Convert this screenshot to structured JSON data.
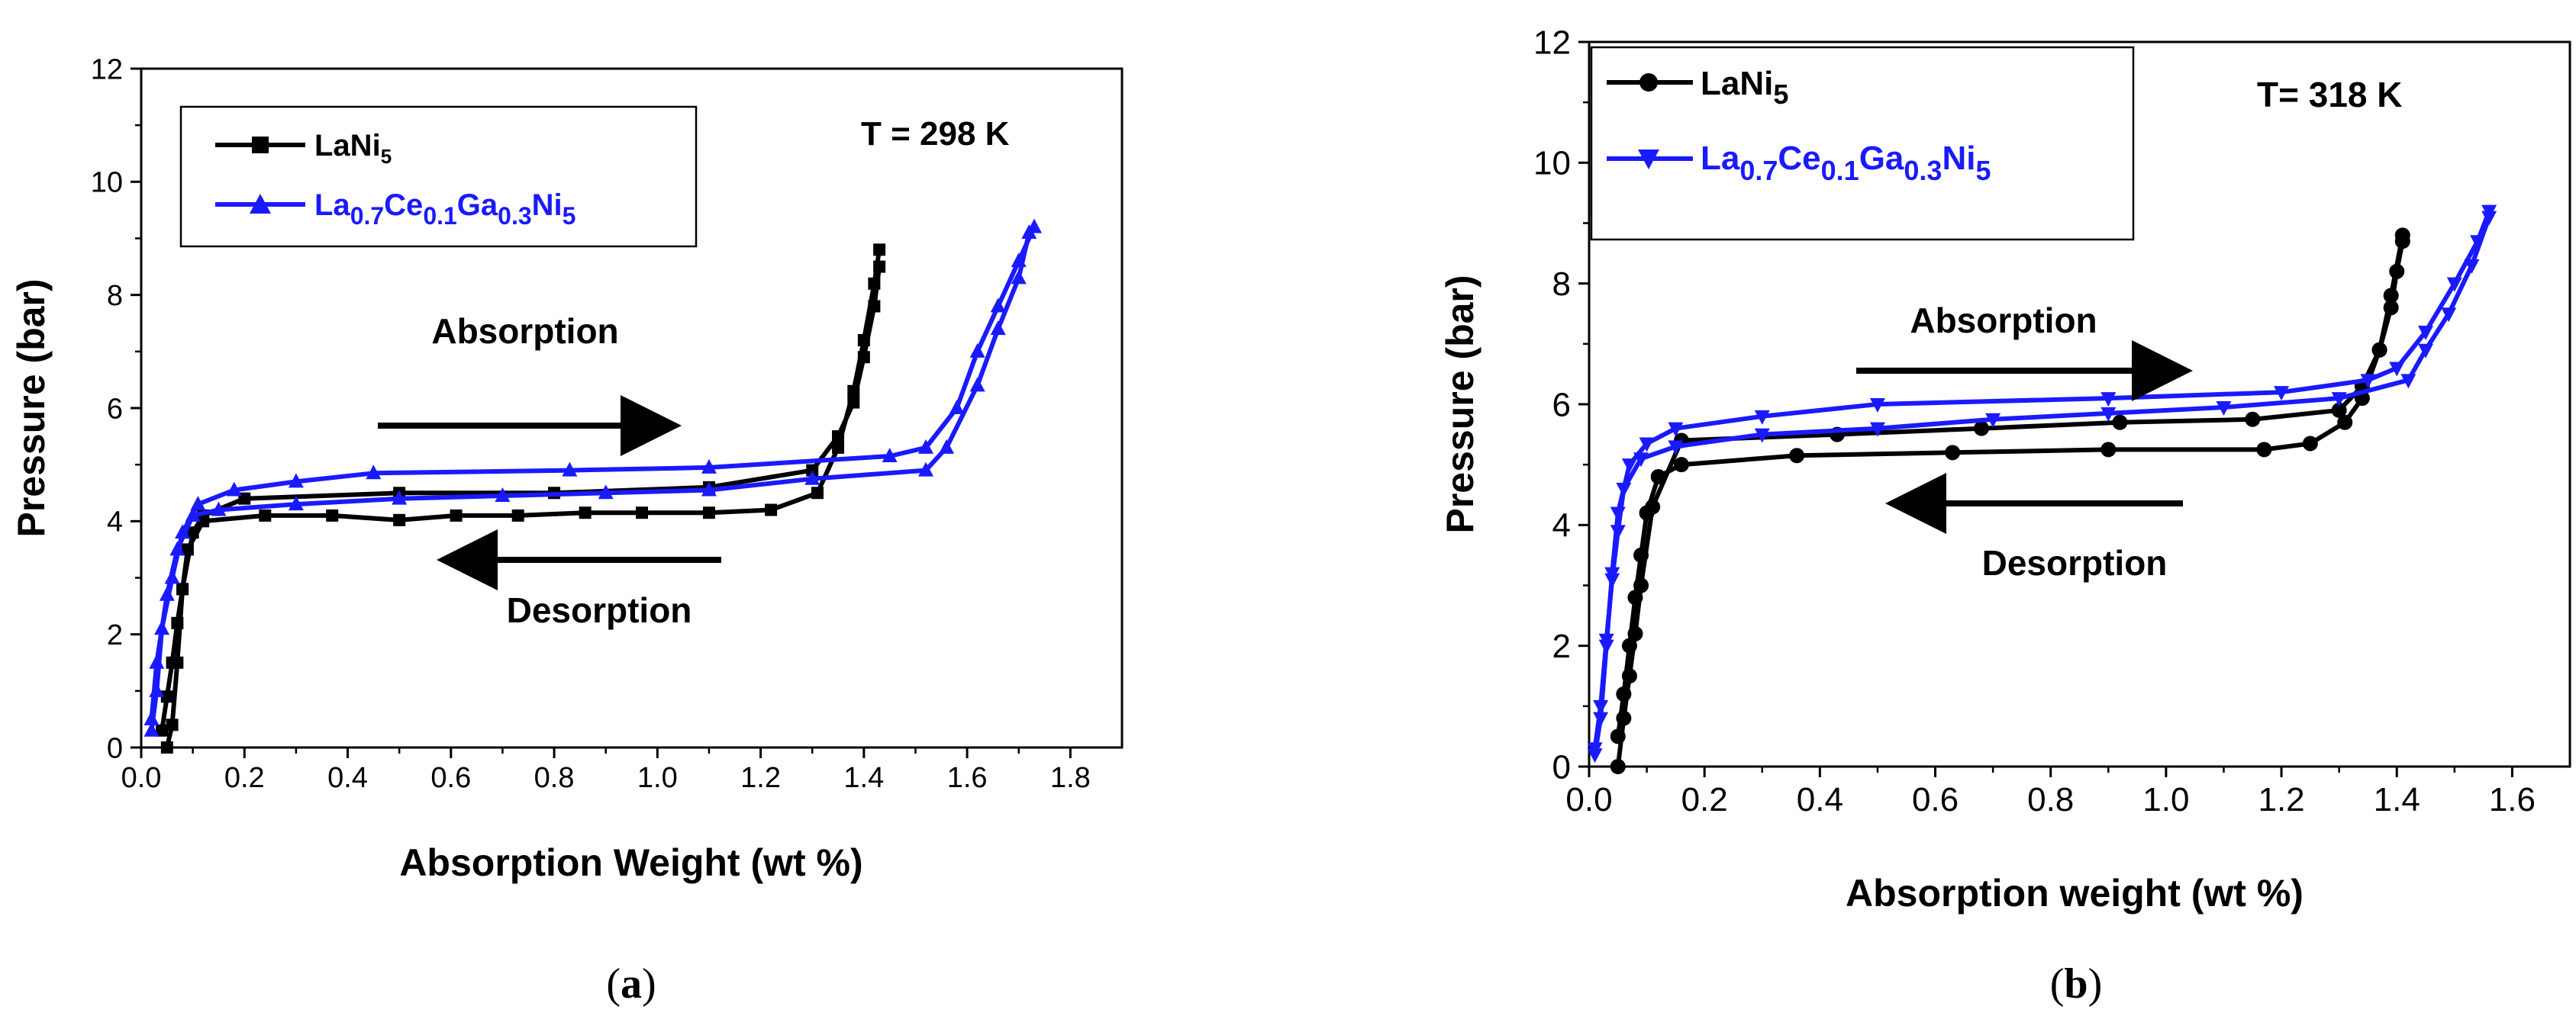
{
  "chart_data": [
    {
      "type": "line",
      "panel": "(a)",
      "caption_open": "(",
      "caption_letter": "a",
      "caption_close": ")",
      "xlabel": "Absorption Weight (wt %)",
      "ylabel": "Pressure (bar)",
      "xlim": [
        0.0,
        1.9
      ],
      "ylim": [
        0,
        12
      ],
      "xticks": [
        "0.0",
        "0.2",
        "0.4",
        "0.6",
        "0.8",
        "1.0",
        "1.2",
        "1.4",
        "1.6",
        "1.8"
      ],
      "yticks": [
        "0",
        "2",
        "4",
        "6",
        "8",
        "10",
        "12"
      ],
      "annotations": {
        "temperature": "T = 298 K",
        "absorption": "Absorption",
        "desorption": "Desorption"
      },
      "legend": {
        "series1": {
          "base": "LaNi",
          "sub": "5"
        },
        "series2": {
          "parts": [
            [
              "La",
              "0.7"
            ],
            [
              "Ce",
              "0.1"
            ],
            [
              "Ga",
              "0.3"
            ],
            [
              "Ni",
              "5"
            ]
          ]
        }
      },
      "series": [
        {
          "name": "LaNi5",
          "color": "#000000",
          "marker": "square",
          "absorption": [
            [
              0.05,
              0
            ],
            [
              0.06,
              0.4
            ],
            [
              0.07,
              1.5
            ],
            [
              0.08,
              2.8
            ],
            [
              0.1,
              3.8
            ],
            [
              0.12,
              4.1
            ],
            [
              0.2,
              4.4
            ],
            [
              0.5,
              4.5
            ],
            [
              0.8,
              4.5
            ],
            [
              1.1,
              4.6
            ],
            [
              1.3,
              4.9
            ],
            [
              1.35,
              5.5
            ],
            [
              1.38,
              6.1
            ],
            [
              1.4,
              6.9
            ],
            [
              1.42,
              7.8
            ],
            [
              1.43,
              8.5
            ]
          ],
          "desorption": [
            [
              1.43,
              8.8
            ],
            [
              1.42,
              8.2
            ],
            [
              1.4,
              7.2
            ],
            [
              1.38,
              6.3
            ],
            [
              1.35,
              5.3
            ],
            [
              1.31,
              4.5
            ],
            [
              1.22,
              4.2
            ],
            [
              1.1,
              4.15
            ],
            [
              0.97,
              4.15
            ],
            [
              0.86,
              4.15
            ],
            [
              0.73,
              4.1
            ],
            [
              0.61,
              4.1
            ],
            [
              0.5,
              4.02
            ],
            [
              0.37,
              4.1
            ],
            [
              0.24,
              4.1
            ],
            [
              0.12,
              4.0
            ],
            [
              0.09,
              3.5
            ],
            [
              0.08,
              2.8
            ],
            [
              0.07,
              2.2
            ],
            [
              0.06,
              1.5
            ],
            [
              0.05,
              0.9
            ],
            [
              0.04,
              0.3
            ]
          ]
        },
        {
          "name": "La0.7Ce0.1Ga0.3Ni5",
          "color": "#1a1aff",
          "marker": "triangle",
          "absorption": [
            [
              0.02,
              0.3
            ],
            [
              0.03,
              1.0
            ],
            [
              0.04,
              2.1
            ],
            [
              0.06,
              3.0
            ],
            [
              0.08,
              3.8
            ],
            [
              0.11,
              4.3
            ],
            [
              0.18,
              4.55
            ],
            [
              0.3,
              4.7
            ],
            [
              0.45,
              4.85
            ],
            [
              0.83,
              4.9
            ],
            [
              1.1,
              4.95
            ],
            [
              1.45,
              5.15
            ],
            [
              1.52,
              5.3
            ],
            [
              1.58,
              6.0
            ],
            [
              1.62,
              7.0
            ],
            [
              1.66,
              7.8
            ],
            [
              1.7,
              8.6
            ],
            [
              1.73,
              9.2
            ]
          ],
          "desorption": [
            [
              1.72,
              9.1
            ],
            [
              1.7,
              8.3
            ],
            [
              1.66,
              7.4
            ],
            [
              1.62,
              6.4
            ],
            [
              1.56,
              5.3
            ],
            [
              1.52,
              4.9
            ],
            [
              1.3,
              4.75
            ],
            [
              1.1,
              4.55
            ],
            [
              0.9,
              4.5
            ],
            [
              0.7,
              4.45
            ],
            [
              0.5,
              4.4
            ],
            [
              0.3,
              4.3
            ],
            [
              0.15,
              4.2
            ],
            [
              0.1,
              4.1
            ],
            [
              0.07,
              3.5
            ],
            [
              0.05,
              2.7
            ],
            [
              0.03,
              1.5
            ],
            [
              0.02,
              0.5
            ]
          ]
        }
      ]
    },
    {
      "type": "line",
      "panel": "(b)",
      "caption_open": "(",
      "caption_letter": "b",
      "caption_close": ")",
      "xlabel": "Absorption weight (wt %)",
      "ylabel": "Pressure (bar)",
      "xlim": [
        0.0,
        1.7
      ],
      "ylim": [
        0,
        12
      ],
      "xticks": [
        "0.0",
        "0.2",
        "0.4",
        "0.6",
        "0.8",
        "1.0",
        "1.2",
        "1.4",
        "1.6"
      ],
      "yticks": [
        "0",
        "2",
        "4",
        "6",
        "8",
        "10",
        "12"
      ],
      "annotations": {
        "temperature": "T= 318 K",
        "absorption": "Absorption",
        "desorption": "Desorption"
      },
      "legend": {
        "series1": {
          "base": "LaNi",
          "sub": "5"
        },
        "series2": {
          "parts": [
            [
              "La",
              "0.7"
            ],
            [
              "Ce",
              "0.1"
            ],
            [
              "Ga",
              "0.3"
            ],
            [
              "Ni",
              "5"
            ]
          ]
        }
      },
      "series": [
        {
          "name": "LaNi5",
          "color": "#000000",
          "marker": "circle",
          "absorption": [
            [
              0.05,
              0
            ],
            [
              0.06,
              0.8
            ],
            [
              0.07,
              1.5
            ],
            [
              0.08,
              2.2
            ],
            [
              0.09,
              3.0
            ],
            [
              0.11,
              4.3
            ],
            [
              0.16,
              5.4
            ],
            [
              0.43,
              5.5
            ],
            [
              0.68,
              5.6
            ],
            [
              0.92,
              5.7
            ],
            [
              1.15,
              5.75
            ],
            [
              1.3,
              5.9
            ],
            [
              1.34,
              6.3
            ],
            [
              1.37,
              6.9
            ],
            [
              1.39,
              7.6
            ],
            [
              1.4,
              8.2
            ],
            [
              1.41,
              8.7
            ]
          ],
          "desorption": [
            [
              1.41,
              8.8
            ],
            [
              1.39,
              7.8
            ],
            [
              1.37,
              6.9
            ],
            [
              1.34,
              6.1
            ],
            [
              1.31,
              5.7
            ],
            [
              1.25,
              5.35
            ],
            [
              1.17,
              5.25
            ],
            [
              0.9,
              5.25
            ],
            [
              0.63,
              5.2
            ],
            [
              0.36,
              5.15
            ],
            [
              0.16,
              5.0
            ],
            [
              0.12,
              4.8
            ],
            [
              0.1,
              4.2
            ],
            [
              0.09,
              3.5
            ],
            [
              0.08,
              2.8
            ],
            [
              0.07,
              2.0
            ],
            [
              0.06,
              1.2
            ],
            [
              0.05,
              0.5
            ]
          ]
        },
        {
          "name": "La0.7Ce0.1Ga0.3Ni5",
          "color": "#1a1aff",
          "marker": "triangle-down",
          "absorption": [
            [
              0.01,
              0.2
            ],
            [
              0.02,
              0.8
            ],
            [
              0.03,
              2.0
            ],
            [
              0.04,
              3.2
            ],
            [
              0.05,
              4.2
            ],
            [
              0.07,
              5.0
            ],
            [
              0.1,
              5.35
            ],
            [
              0.15,
              5.6
            ],
            [
              0.3,
              5.8
            ],
            [
              0.5,
              6.0
            ],
            [
              0.9,
              6.1
            ],
            [
              1.2,
              6.2
            ],
            [
              1.35,
              6.4
            ],
            [
              1.4,
              6.6
            ],
            [
              1.45,
              7.2
            ],
            [
              1.5,
              8.0
            ],
            [
              1.54,
              8.7
            ],
            [
              1.56,
              9.2
            ]
          ],
          "desorption": [
            [
              1.56,
              9.1
            ],
            [
              1.53,
              8.3
            ],
            [
              1.49,
              7.5
            ],
            [
              1.45,
              6.9
            ],
            [
              1.42,
              6.4
            ],
            [
              1.3,
              6.1
            ],
            [
              1.1,
              5.95
            ],
            [
              0.9,
              5.85
            ],
            [
              0.7,
              5.75
            ],
            [
              0.5,
              5.6
            ],
            [
              0.3,
              5.5
            ],
            [
              0.15,
              5.3
            ],
            [
              0.09,
              5.1
            ],
            [
              0.06,
              4.6
            ],
            [
              0.05,
              3.9
            ],
            [
              0.04,
              3.1
            ],
            [
              0.03,
              2.1
            ],
            [
              0.02,
              1.0
            ],
            [
              0.01,
              0.3
            ]
          ]
        }
      ]
    }
  ]
}
